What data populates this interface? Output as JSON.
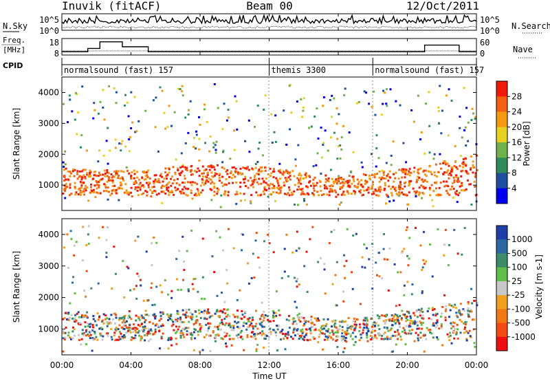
{
  "header": {
    "station": "Inuvik (fitACF)",
    "beam": "Beam 00",
    "date": "12/Oct/2011"
  },
  "noise_panel": {
    "left_label": "N.Sky",
    "right_label": "N.Search",
    "left_ticks": [
      "10^5",
      "10^0"
    ],
    "right_ticks": [
      "10^5",
      "10^0"
    ]
  },
  "freq_panel": {
    "left_label_1": "Freq.",
    "left_label_2": "[MHz]",
    "right_label": "Nave",
    "left_ticks": [
      "18",
      "8"
    ],
    "right_ticks": [
      "60",
      "0"
    ]
  },
  "cpid_panel": {
    "label": "CPID",
    "segments": [
      {
        "name": "normalsound (fast) 157",
        "start_hour": 0
      },
      {
        "name": "themis 3300",
        "start_hour": 12
      },
      {
        "name": "normalsound (fast) 157",
        "start_hour": 18
      }
    ]
  },
  "power_panel": {
    "ylabel": "Slant Range [km]",
    "yticks": [
      "4000",
      "3000",
      "2000",
      "1000"
    ],
    "colorbar_label": "Power [dB]",
    "colorbar_ticks": [
      "28",
      "24",
      "20",
      "16",
      "12",
      "8",
      "4"
    ],
    "colors": [
      "#0000ee",
      "#1f4f9f",
      "#2e8b57",
      "#6fb24a",
      "#e8d020",
      "#f59a10",
      "#f26010",
      "#ee1a0a"
    ]
  },
  "velocity_panel": {
    "ylabel": "Slant Range [km]",
    "yticks": [
      "4000",
      "3000",
      "2000",
      "1000"
    ],
    "colorbar_label": "Velocity [m s-1]",
    "colorbar_ticks": [
      "1000",
      "500",
      "100",
      "25",
      "-25",
      "-100",
      "-500",
      "-1000"
    ],
    "colors": [
      "#1f3fa8",
      "#2a6aa0",
      "#3b8c68",
      "#5fbe4a",
      "#c8c8c8",
      "#f0a020",
      "#f27814",
      "#f24a10",
      "#ee1010"
    ]
  },
  "xaxis": {
    "label": "Time UT",
    "ticks": [
      "00:00",
      "04:00",
      "08:00",
      "12:00",
      "16:00",
      "20:00",
      "00:00"
    ]
  },
  "chart_data": {
    "type": "heatmap",
    "title": "Inuvik (fitACF)   Beam 00   12/Oct/2011",
    "xlabel": "Time UT",
    "ylabel": "Slant Range [km]",
    "xlim_hours": [
      0,
      24
    ],
    "ylim_km": [
      180,
      4500
    ],
    "grid": false,
    "colorbars": [
      {
        "panel": "power",
        "label": "Power [dB]",
        "range": [
          0,
          30
        ]
      },
      {
        "panel": "velocity",
        "label": "Velocity [m s-1]",
        "range": [
          -1000,
          1000
        ]
      }
    ],
    "main_echo_band_km": [
      {
        "hour": 0,
        "low": 700,
        "high": 1600
      },
      {
        "hour": 4,
        "low": 650,
        "high": 1500
      },
      {
        "hour": 8,
        "low": 700,
        "high": 1700
      },
      {
        "hour": 12,
        "low": 700,
        "high": 1600
      },
      {
        "hour": 16,
        "low": 650,
        "high": 1300
      },
      {
        "hour": 20,
        "low": 700,
        "high": 1600
      },
      {
        "hour": 24,
        "low": 700,
        "high": 2000
      }
    ],
    "transmit_frequency_mhz": [
      {
        "hour": 0,
        "value": 10
      },
      {
        "hour": 1.5,
        "value": 12
      },
      {
        "hour": 2.2,
        "value": 16
      },
      {
        "hour": 3.5,
        "value": 13
      },
      {
        "hour": 5,
        "value": 10
      },
      {
        "hour": 18,
        "value": 10
      },
      {
        "hour": 21,
        "value": 14
      },
      {
        "hour": 23,
        "value": 10
      }
    ]
  }
}
